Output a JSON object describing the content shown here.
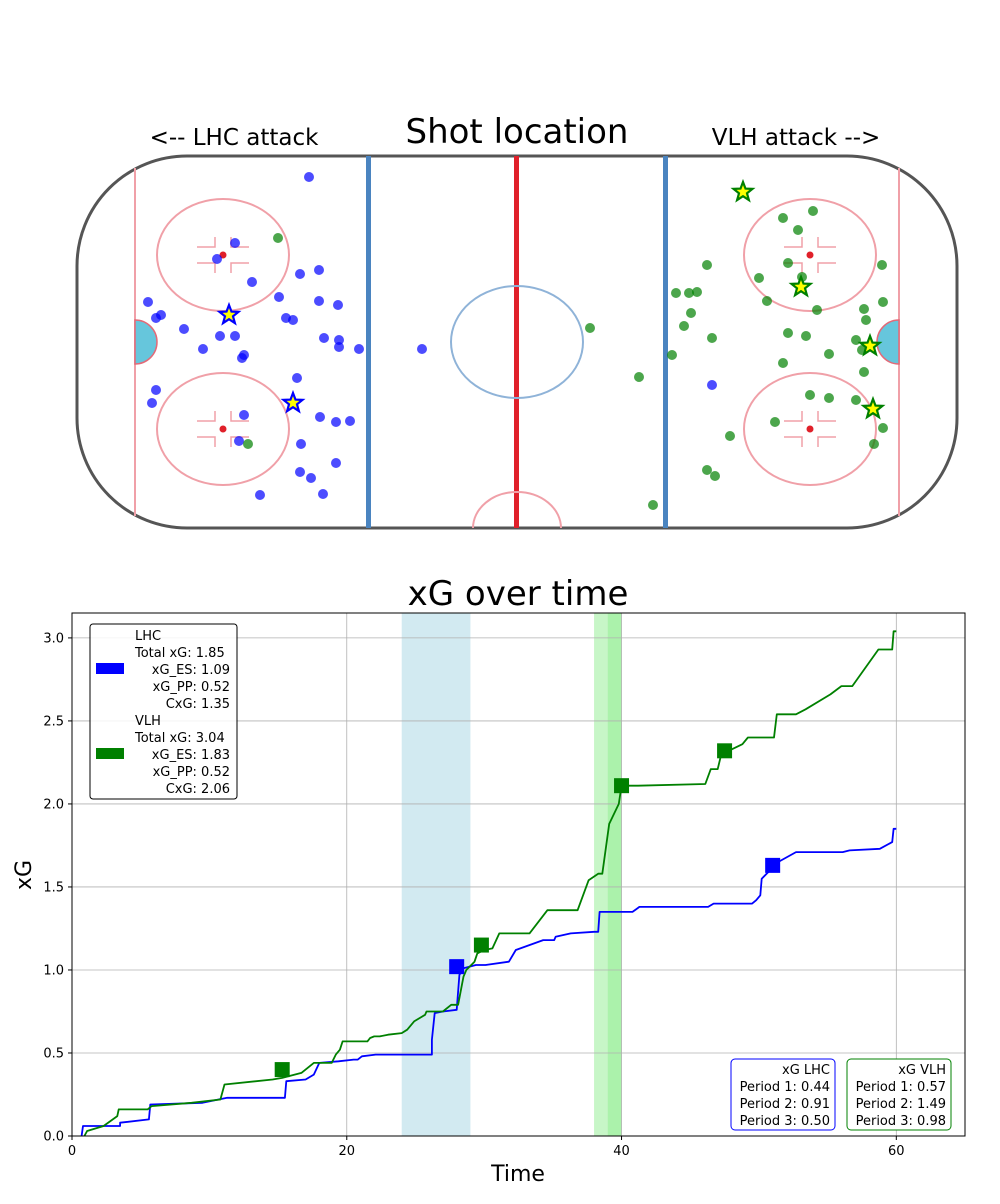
{
  "rink": {
    "title": "Shot location",
    "left_label": "<-- LHC attack",
    "right_label": "VLH attack -->"
  },
  "colors": {
    "lhc": "#0000ff",
    "vlh": "#008000",
    "star_fill": "#ffff00",
    "pp_band_lhc": "#add8e6",
    "pp_band_vlh": "#90ee90"
  },
  "chart_data": [
    {
      "type": "scatter",
      "title": "Shot location",
      "series": [
        {
          "name": "LHC",
          "shots": [
            [
              309,
              177
            ],
            [
              235,
              243
            ],
            [
              217,
              259
            ],
            [
              252,
              282
            ],
            [
              300,
              274
            ],
            [
              319,
              270
            ],
            [
              279,
              297
            ],
            [
              148,
              302
            ],
            [
              319,
              301
            ],
            [
              338,
              305
            ],
            [
              161,
              315
            ],
            [
              156,
              318
            ],
            [
              286,
              318
            ],
            [
              293,
              320
            ],
            [
              184,
              329
            ],
            [
              220,
              336
            ],
            [
              235,
              336
            ],
            [
              324,
              338
            ],
            [
              339,
              340
            ],
            [
              339,
              347
            ],
            [
              359,
              349
            ],
            [
              203,
              349
            ],
            [
              244,
              355
            ],
            [
              242,
              358
            ],
            [
              422,
              349
            ],
            [
              297,
              378
            ],
            [
              156,
              390
            ],
            [
              152,
              403
            ],
            [
              244,
              415
            ],
            [
              320,
              417
            ],
            [
              336,
              422
            ],
            [
              350,
              421
            ],
            [
              301,
              444
            ],
            [
              239,
              441
            ],
            [
              336,
              463
            ],
            [
              300,
              472
            ],
            [
              311,
              478
            ],
            [
              323,
              494
            ],
            [
              260,
              495
            ],
            [
              712,
              385
            ]
          ],
          "goals": [
            [
              229,
              315
            ],
            [
              293,
              403
            ]
          ]
        },
        {
          "name": "VLH",
          "shots": [
            [
              278,
              238
            ],
            [
              248,
              444
            ],
            [
              813,
              211
            ],
            [
              783,
              218
            ],
            [
              798,
              230
            ],
            [
              707,
              265
            ],
            [
              788,
              263
            ],
            [
              882,
              265
            ],
            [
              759,
              278
            ],
            [
              802,
              277
            ],
            [
              676,
              293
            ],
            [
              689,
              293
            ],
            [
              697,
              292
            ],
            [
              767,
              301
            ],
            [
              883,
              302
            ],
            [
              817,
              310
            ],
            [
              691,
              313
            ],
            [
              864,
              309
            ],
            [
              590,
              328
            ],
            [
              684,
              326
            ],
            [
              866,
              320
            ],
            [
              788,
              333
            ],
            [
              806,
              336
            ],
            [
              712,
              338
            ],
            [
              856,
              340
            ],
            [
              862,
              350
            ],
            [
              829,
              354
            ],
            [
              672,
              355
            ],
            [
              783,
              363
            ],
            [
              864,
              372
            ],
            [
              639,
              377
            ],
            [
              810,
              395
            ],
            [
              829,
              398
            ],
            [
              856,
              400
            ],
            [
              883,
              428
            ],
            [
              775,
              422
            ],
            [
              730,
              436
            ],
            [
              874,
              444
            ],
            [
              707,
              470
            ],
            [
              715,
              476
            ],
            [
              653,
              505
            ]
          ],
          "goals": [
            [
              743,
              192
            ],
            [
              801,
              287
            ],
            [
              870,
              346
            ],
            [
              873,
              409
            ]
          ]
        }
      ]
    },
    {
      "type": "line",
      "title": "xG over time",
      "xlabel": "Time",
      "ylabel": "xG",
      "xlim": [
        0,
        65
      ],
      "ylim": [
        0,
        3.15
      ],
      "x_ticks": [
        "0",
        "20",
        "40",
        "60"
      ],
      "y_ticks": [
        "0.0",
        "0.5",
        "1.0",
        "1.5",
        "2.0",
        "2.5",
        "3.0"
      ],
      "grid": true,
      "pp_bands": [
        {
          "team": "LHC",
          "x": [
            24.0,
            29.0
          ]
        },
        {
          "team": "VLH",
          "x": [
            38.0,
            40.0
          ]
        },
        {
          "team": "VLH",
          "x": [
            39.0,
            40.0
          ]
        }
      ],
      "series": [
        {
          "name": "LHC",
          "points": [
            [
              0.7,
              0.0
            ],
            [
              0.8,
              0.06
            ],
            [
              3.5,
              0.06
            ],
            [
              3.5,
              0.08
            ],
            [
              5.6,
              0.1
            ],
            [
              5.7,
              0.19
            ],
            [
              9.5,
              0.2
            ],
            [
              11.3,
              0.23
            ],
            [
              15.5,
              0.23
            ],
            [
              15.6,
              0.33
            ],
            [
              17.0,
              0.34
            ],
            [
              17.6,
              0.37
            ],
            [
              18.0,
              0.44
            ],
            [
              19.4,
              0.45
            ],
            [
              20.5,
              0.46
            ],
            [
              20.8,
              0.46
            ],
            [
              21.1,
              0.48
            ],
            [
              22.1,
              0.49
            ],
            [
              26.2,
              0.49
            ],
            [
              26.2,
              0.58
            ],
            [
              26.4,
              0.74
            ],
            [
              27.0,
              0.75
            ],
            [
              28.0,
              0.76
            ],
            [
              28.2,
              0.97
            ],
            [
              28.5,
              1.01
            ],
            [
              29.4,
              1.03
            ],
            [
              30.1,
              1.03
            ],
            [
              31.8,
              1.05
            ],
            [
              32.3,
              1.12
            ],
            [
              34.3,
              1.18
            ],
            [
              35.1,
              1.18
            ],
            [
              35.2,
              1.2
            ],
            [
              36.3,
              1.22
            ],
            [
              38.0,
              1.23
            ],
            [
              38.3,
              1.23
            ],
            [
              38.4,
              1.35
            ],
            [
              40.8,
              1.35
            ],
            [
              41.3,
              1.38
            ],
            [
              43.8,
              1.38
            ],
            [
              46.3,
              1.38
            ],
            [
              46.7,
              1.4
            ],
            [
              48.0,
              1.4
            ],
            [
              49.5,
              1.4
            ],
            [
              49.8,
              1.42
            ],
            [
              50.1,
              1.45
            ],
            [
              50.2,
              1.55
            ],
            [
              51.4,
              1.65
            ],
            [
              52.7,
              1.71
            ],
            [
              56.1,
              1.71
            ],
            [
              56.6,
              1.72
            ],
            [
              58.8,
              1.73
            ],
            [
              59.7,
              1.77
            ],
            [
              59.8,
              1.85
            ],
            [
              60.0,
              1.85
            ]
          ],
          "markers": [
            [
              28.0,
              1.02
            ],
            [
              51.0,
              1.63
            ]
          ]
        },
        {
          "name": "VLH",
          "points": [
            [
              0.9,
              0.0
            ],
            [
              1.1,
              0.03
            ],
            [
              2.3,
              0.06
            ],
            [
              3.3,
              0.12
            ],
            [
              3.4,
              0.16
            ],
            [
              5.5,
              0.16
            ],
            [
              5.8,
              0.18
            ],
            [
              8.7,
              0.2
            ],
            [
              10.8,
              0.22
            ],
            [
              11.1,
              0.31
            ],
            [
              14.6,
              0.34
            ],
            [
              15.3,
              0.35
            ],
            [
              16.7,
              0.38
            ],
            [
              17.6,
              0.44
            ],
            [
              18.9,
              0.44
            ],
            [
              19.2,
              0.49
            ],
            [
              19.5,
              0.52
            ],
            [
              19.7,
              0.57
            ],
            [
              21.5,
              0.57
            ],
            [
              21.7,
              0.59
            ],
            [
              22.0,
              0.6
            ],
            [
              22.4,
              0.6
            ],
            [
              23.0,
              0.61
            ],
            [
              24.0,
              0.62
            ],
            [
              24.4,
              0.64
            ],
            [
              24.9,
              0.69
            ],
            [
              25.7,
              0.73
            ],
            [
              25.8,
              0.75
            ],
            [
              27.0,
              0.75
            ],
            [
              27.6,
              0.79
            ],
            [
              28.1,
              0.79
            ],
            [
              28.5,
              0.96
            ],
            [
              28.7,
              1.0
            ],
            [
              29.3,
              1.05
            ],
            [
              29.5,
              1.1
            ],
            [
              30.0,
              1.12
            ],
            [
              30.6,
              1.13
            ],
            [
              31.1,
              1.22
            ],
            [
              33.3,
              1.22
            ],
            [
              34.6,
              1.36
            ],
            [
              36.8,
              1.36
            ],
            [
              37.6,
              1.54
            ],
            [
              38.3,
              1.58
            ],
            [
              38.6,
              1.58
            ],
            [
              39.1,
              1.88
            ],
            [
              39.8,
              2.0
            ],
            [
              40.0,
              2.11
            ],
            [
              41.2,
              2.11
            ],
            [
              46.1,
              2.12
            ],
            [
              46.5,
              2.21
            ],
            [
              47.0,
              2.21
            ],
            [
              47.2,
              2.28
            ],
            [
              47.8,
              2.32
            ],
            [
              48.8,
              2.36
            ],
            [
              49.2,
              2.4
            ],
            [
              51.1,
              2.4
            ],
            [
              51.3,
              2.54
            ],
            [
              52.7,
              2.54
            ],
            [
              53.4,
              2.57
            ],
            [
              55.2,
              2.66
            ],
            [
              56.0,
              2.71
            ],
            [
              56.8,
              2.71
            ],
            [
              58.7,
              2.93
            ],
            [
              59.7,
              2.93
            ],
            [
              59.8,
              3.04
            ],
            [
              60.0,
              3.04
            ]
          ],
          "markers": [
            [
              15.3,
              0.4
            ],
            [
              29.8,
              1.15
            ],
            [
              40.0,
              2.11
            ],
            [
              47.5,
              2.32
            ]
          ]
        }
      ],
      "legend": {
        "placement": "upper-left",
        "entries": [
          {
            "team": "LHC",
            "lines": [
              "LHC",
              "Total xG: 1.85",
              "xG_ES: 1.09",
              "xG_PP: 0.52",
              "CxG: 1.35"
            ]
          },
          {
            "team": "VLH",
            "lines": [
              "VLH",
              "Total xG: 3.04",
              "xG_ES: 1.83",
              "xG_PP: 0.52",
              "CxG: 2.06"
            ]
          }
        ]
      },
      "period_boxes": [
        {
          "team": "LHC",
          "lines": [
            "xG LHC",
            "Period 1: 0.44",
            "Period 2: 0.91",
            "Period 3: 0.50"
          ]
        },
        {
          "team": "VLH",
          "lines": [
            "xG VLH",
            "Period 1: 0.57",
            "Period 2: 1.49",
            "Period 3: 0.98"
          ]
        }
      ]
    }
  ]
}
